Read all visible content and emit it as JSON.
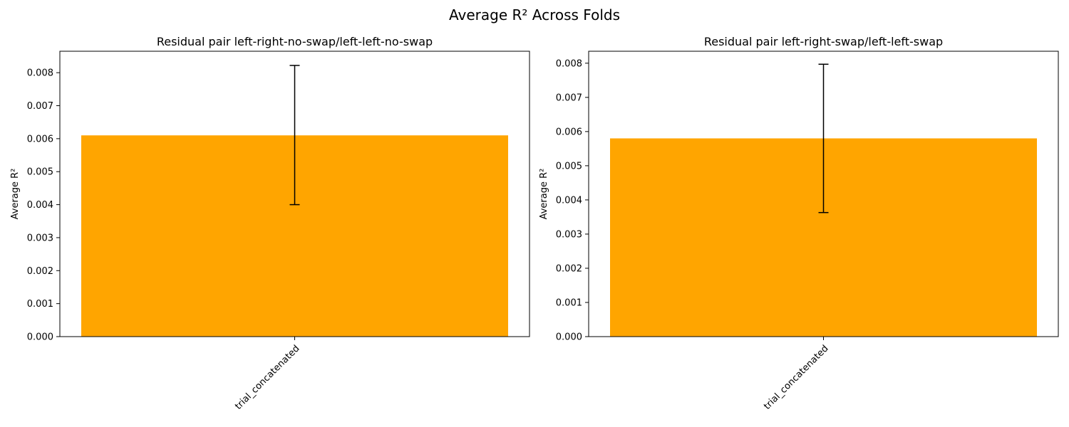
{
  "suptitle": "Average R² Across Folds",
  "bar_color": "#ffa500",
  "chart_data": [
    {
      "type": "bar",
      "title": "Residual pair left-right-no-swap/left-left-no-swap",
      "ylabel": "Average R²",
      "xlabel": "",
      "categories": [
        "trial_concatenated"
      ],
      "values": [
        0.0061
      ],
      "error_low": [
        0.004
      ],
      "error_high": [
        0.00822
      ],
      "ylim": [
        0,
        0.00865
      ],
      "yticks": [
        "0.000",
        "0.001",
        "0.002",
        "0.003",
        "0.004",
        "0.005",
        "0.006",
        "0.007",
        "0.008"
      ],
      "ytick_values": [
        0,
        0.001,
        0.002,
        0.003,
        0.004,
        0.005,
        0.006,
        0.007,
        0.008
      ],
      "grid": false,
      "legend": "none"
    },
    {
      "type": "bar",
      "title": "Residual pair left-right-swap/left-left-swap",
      "ylabel": "Average R²",
      "xlabel": "",
      "categories": [
        "trial_concatenated"
      ],
      "values": [
        0.0058
      ],
      "error_low": [
        0.00363
      ],
      "error_high": [
        0.00797
      ],
      "ylim": [
        0,
        0.00835
      ],
      "yticks": [
        "0.000",
        "0.001",
        "0.002",
        "0.003",
        "0.004",
        "0.005",
        "0.006",
        "0.007",
        "0.008"
      ],
      "ytick_values": [
        0,
        0.001,
        0.002,
        0.003,
        0.004,
        0.005,
        0.006,
        0.007,
        0.008
      ],
      "grid": false,
      "legend": "none"
    }
  ]
}
